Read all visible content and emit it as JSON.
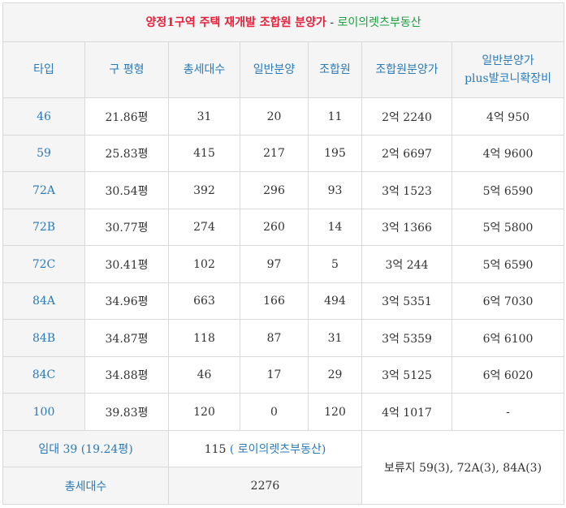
{
  "title": {
    "main": "양정1구역 주택 재개발 조합원 분양가",
    "separator": "-",
    "sub": "로이의렛츠부동산"
  },
  "headers": [
    "타입",
    "구 평형",
    "총세대수",
    "일반분양",
    "조합원",
    "조합원분양가",
    "일반분양가",
    "plus발코니확장비"
  ],
  "rows": [
    {
      "type": "46",
      "pyeong": "21.86평",
      "total": "31",
      "general": "20",
      "member": "11",
      "member_price": "2억 2240",
      "general_price": "4억 950"
    },
    {
      "type": "59",
      "pyeong": "25.83평",
      "total": "415",
      "general": "217",
      "member": "195",
      "member_price": "2억 6697",
      "general_price": "4억 9600"
    },
    {
      "type": "72A",
      "pyeong": "30.54평",
      "total": "392",
      "general": "296",
      "member": "93",
      "member_price": "3억 1523",
      "general_price": "5억 6590"
    },
    {
      "type": "72B",
      "pyeong": "30.77평",
      "total": "274",
      "general": "260",
      "member": "14",
      "member_price": "3억 1366",
      "general_price": "5억 5800"
    },
    {
      "type": "72C",
      "pyeong": "30.41평",
      "total": "102",
      "general": "97",
      "member": "5",
      "member_price": "3억 244",
      "general_price": "5억 6590"
    },
    {
      "type": "84A",
      "pyeong": "34.96평",
      "total": "663",
      "general": "166",
      "member": "494",
      "member_price": "3억 5351",
      "general_price": "6억 7030"
    },
    {
      "type": "84B",
      "pyeong": "34.87평",
      "total": "118",
      "general": "87",
      "member": "31",
      "member_price": "3억 5359",
      "general_price": "6억 6100"
    },
    {
      "type": "84C",
      "pyeong": "34.88평",
      "total": "46",
      "general": "17",
      "member": "29",
      "member_price": "3억 5125",
      "general_price": "6억 6020"
    },
    {
      "type": "100",
      "pyeong": "39.83평",
      "total": "120",
      "general": "0",
      "member": "120",
      "member_price": "4억 1017",
      "general_price": "-"
    }
  ],
  "footer": {
    "rental_label": "임대 39 (19.24평)",
    "rental_count": "115",
    "rental_link": "( 로이의렛츠부동산)",
    "total_label": "총세대수",
    "total_value": "2276",
    "reserve_note": "보류지 59(3), 72A(3), 84A(3)"
  },
  "colors": {
    "title_red": "#e8203a",
    "title_green": "#1b9e3e",
    "header_blue": "#2a7ab8",
    "cell_gray": "#f5f5f5",
    "border": "#d9d9d9"
  }
}
